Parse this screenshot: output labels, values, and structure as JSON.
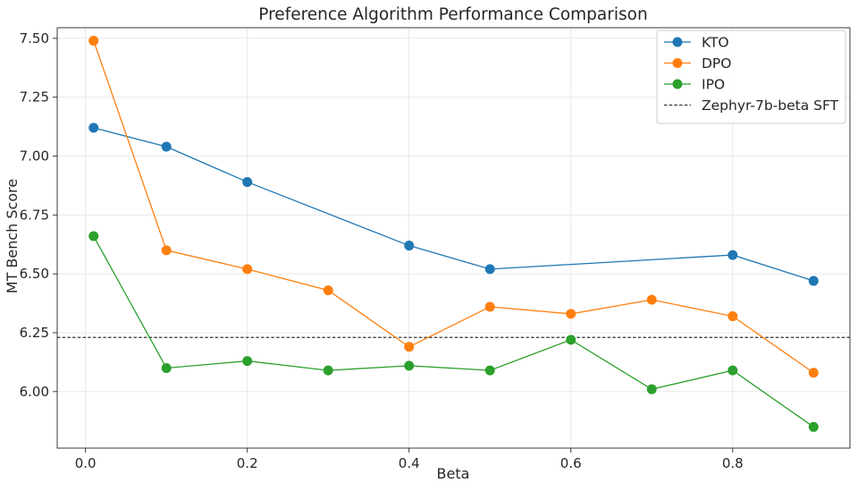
{
  "chart_data": {
    "type": "line",
    "title": "Preference Algorithm Performance Comparison",
    "xlabel": "Beta",
    "ylabel": "MT Bench Score",
    "xlim": [
      -0.035,
      0.945
    ],
    "ylim": [
      5.76,
      7.545
    ],
    "xticks": [
      0.0,
      0.2,
      0.4,
      0.6,
      0.8
    ],
    "xtick_labels": [
      "0.0",
      "0.2",
      "0.4",
      "0.6",
      "0.8"
    ],
    "yticks": [
      6.0,
      6.25,
      6.5,
      6.75,
      7.0,
      7.25,
      7.5
    ],
    "ytick_labels": [
      "6.00",
      "6.25",
      "6.50",
      "6.75",
      "7.00",
      "7.25",
      "7.50"
    ],
    "grid": true,
    "legend_position": "top-right",
    "series": [
      {
        "name": "KTO",
        "color": "#1f77b4",
        "x": [
          0.01,
          0.1,
          0.2,
          0.4,
          0.5,
          0.8,
          0.9
        ],
        "y": [
          7.12,
          7.04,
          6.89,
          6.62,
          6.52,
          6.58,
          6.47
        ]
      },
      {
        "name": "DPO",
        "color": "#ff7f0e",
        "x": [
          0.01,
          0.1,
          0.2,
          0.3,
          0.4,
          0.5,
          0.6,
          0.7,
          0.8,
          0.9
        ],
        "y": [
          7.49,
          6.6,
          6.52,
          6.43,
          6.19,
          6.36,
          6.33,
          6.39,
          6.32,
          6.08
        ]
      },
      {
        "name": "IPO",
        "color": "#2ca02c",
        "x": [
          0.01,
          0.1,
          0.2,
          0.3,
          0.4,
          0.5,
          0.6,
          0.7,
          0.8,
          0.9
        ],
        "y": [
          6.66,
          6.1,
          6.13,
          6.09,
          6.11,
          6.09,
          6.22,
          6.01,
          6.09,
          5.85
        ]
      }
    ],
    "reference_line": {
      "name": "Zephyr-7b-beta SFT",
      "y": 6.23,
      "color": "#333333",
      "style": "dashed"
    }
  }
}
